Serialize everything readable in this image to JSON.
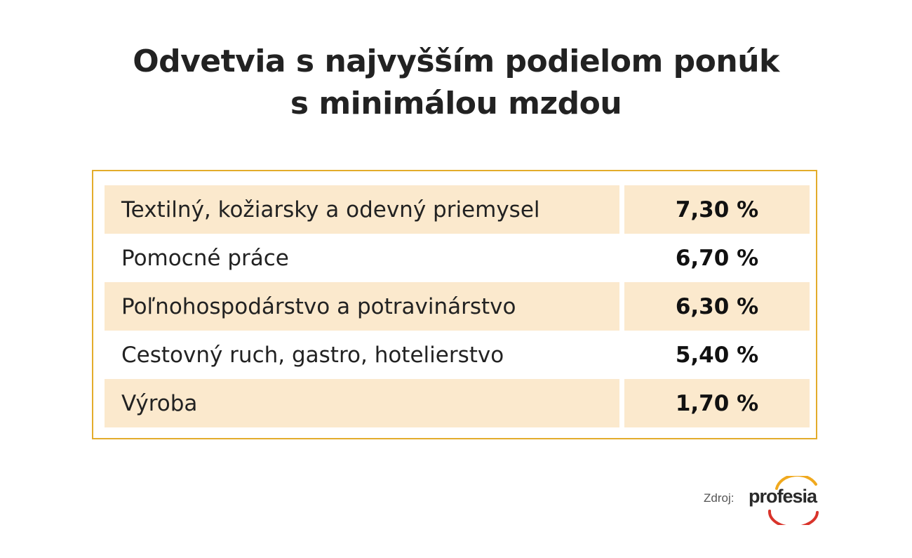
{
  "title": {
    "line1": "Odvetvia s najvyšším podielom ponúk",
    "line2": "s minimálou mzdou"
  },
  "chart_data": {
    "type": "table",
    "title": "Odvetvia s najvyšším podielom ponúk s minimálou mzdou",
    "rows": [
      {
        "label": "Textilný, kožiarsky a odevný priemysel",
        "value": 7.3,
        "display": "7,30 %"
      },
      {
        "label": "Pomocné práce",
        "value": 6.7,
        "display": "6,70 %"
      },
      {
        "label": "Poľnohospodárstvo a potravinárstvo",
        "value": 6.3,
        "display": "6,30 %"
      },
      {
        "label": "Cestovný ruch, gastro, hotelierstvo",
        "value": 5.4,
        "display": "5,40 %"
      },
      {
        "label": "Výroba",
        "value": 1.7,
        "display": "1,70 %"
      }
    ]
  },
  "source": {
    "label": "Zdroj:",
    "logo_text": "profesia"
  },
  "colors": {
    "frame": "#e3ac2b",
    "row_shade": "#fbe9cd",
    "logo_arc_top": "#f0a91e",
    "logo_arc_bottom": "#d9342b"
  }
}
